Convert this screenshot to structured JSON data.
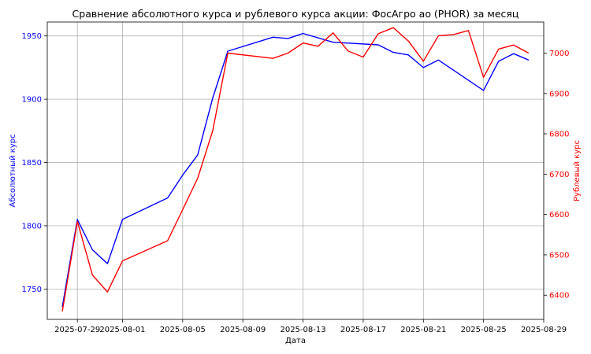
{
  "chart_data": {
    "type": "line",
    "title": "Сравнение абсолютного курса и рублевого курса акции: ФосАгро ао (PHOR) за месяц",
    "xlabel": "Дата",
    "ylabel_left": "Абсолютный курс",
    "ylabel_right": "Рублевый курс",
    "grid": true,
    "x_ticks": [
      "2025-07-29",
      "2025-08-01",
      "2025-08-05",
      "2025-08-09",
      "2025-08-13",
      "2025-08-17",
      "2025-08-21",
      "2025-08-25",
      "2025-08-29"
    ],
    "y_left_ticks": [
      1750,
      1800,
      1850,
      1900,
      1950
    ],
    "y_right_ticks": [
      6400,
      6500,
      6600,
      6700,
      6800,
      6900,
      7000
    ],
    "ylim_left": [
      1726,
      1961
    ],
    "ylim_right": [
      6340,
      7077
    ],
    "xlim": [
      "2025-07-27",
      "2025-08-29"
    ],
    "colors": {
      "left": "#0000ff",
      "right": "#ff0000"
    },
    "series": [
      {
        "axis": "left",
        "color": "#0000ff",
        "points": [
          [
            "2025-07-28",
            1736
          ],
          [
            "2025-07-29",
            1805
          ],
          [
            "2025-07-30",
            1781
          ],
          [
            "2025-07-31",
            1770
          ],
          [
            "2025-08-01",
            1805
          ],
          [
            "2025-08-04",
            1822
          ],
          [
            "2025-08-05",
            1840
          ],
          [
            "2025-08-06",
            1856
          ],
          [
            "2025-08-07",
            1901
          ],
          [
            "2025-08-08",
            1938
          ],
          [
            "2025-08-11",
            1949
          ],
          [
            "2025-08-12",
            1948
          ],
          [
            "2025-08-13",
            1952
          ],
          [
            "2025-08-15",
            1945
          ],
          [
            "2025-08-18",
            1943
          ],
          [
            "2025-08-19",
            1937
          ],
          [
            "2025-08-20",
            1935
          ],
          [
            "2025-08-21",
            1925
          ],
          [
            "2025-08-22",
            1931
          ],
          [
            "2025-08-25",
            1907
          ],
          [
            "2025-08-26",
            1930
          ],
          [
            "2025-08-27",
            1936
          ],
          [
            "2025-08-28",
            1931
          ]
        ]
      },
      {
        "axis": "right",
        "color": "#ff0000",
        "points": [
          [
            "2025-07-28",
            6360
          ],
          [
            "2025-07-29",
            6583
          ],
          [
            "2025-07-30",
            6450
          ],
          [
            "2025-07-31",
            6408
          ],
          [
            "2025-08-01",
            6485
          ],
          [
            "2025-08-04",
            6535
          ],
          [
            "2025-08-05",
            6612
          ],
          [
            "2025-08-06",
            6690
          ],
          [
            "2025-08-07",
            6808
          ],
          [
            "2025-08-08",
            7000
          ],
          [
            "2025-08-11",
            6987
          ],
          [
            "2025-08-12",
            7000
          ],
          [
            "2025-08-13",
            7025
          ],
          [
            "2025-08-14",
            7017
          ],
          [
            "2025-08-15",
            7050
          ],
          [
            "2025-08-16",
            7005
          ],
          [
            "2025-08-17",
            6990
          ],
          [
            "2025-08-18",
            7048
          ],
          [
            "2025-08-19",
            7063
          ],
          [
            "2025-08-20",
            7030
          ],
          [
            "2025-08-21",
            6980
          ],
          [
            "2025-08-22",
            7043
          ],
          [
            "2025-08-23",
            7046
          ],
          [
            "2025-08-24",
            7056
          ],
          [
            "2025-08-25",
            6940
          ],
          [
            "2025-08-26",
            7010
          ],
          [
            "2025-08-27",
            7020
          ],
          [
            "2025-08-28",
            7000
          ]
        ]
      }
    ]
  }
}
